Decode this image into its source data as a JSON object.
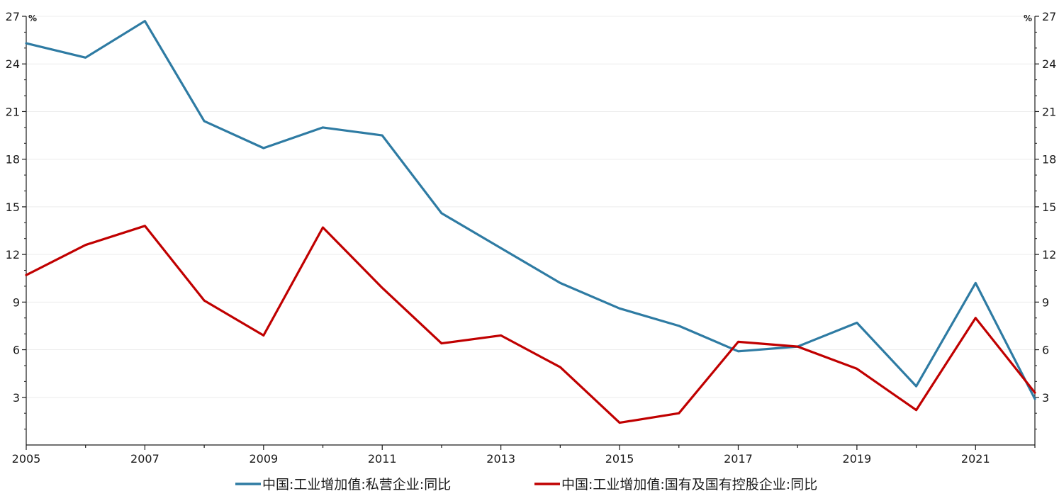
{
  "chart_data": {
    "type": "line",
    "x": [
      2005,
      2006,
      2007,
      2008,
      2009,
      2010,
      2011,
      2012,
      2013,
      2014,
      2015,
      2016,
      2017,
      2018,
      2019,
      2020,
      2021,
      2022
    ],
    "x_tick_labels": [
      "2005",
      "2007",
      "2009",
      "2011",
      "2013",
      "2015",
      "2017",
      "2019",
      "2021"
    ],
    "x_tick_values": [
      2005,
      2007,
      2009,
      2011,
      2013,
      2015,
      2017,
      2019,
      2021
    ],
    "xlim": [
      2005,
      2022
    ],
    "ylim": [
      0,
      27
    ],
    "y_ticks": [
      3,
      6,
      9,
      12,
      15,
      18,
      21,
      24,
      27
    ],
    "y_unit_left": "%",
    "y_unit_right": "%",
    "grid": true,
    "legend_position": "bottom",
    "series": [
      {
        "name": "中国:工业增加值:私营企业:同比",
        "color": "#2e7ba3",
        "values": [
          25.3,
          24.4,
          26.7,
          20.4,
          18.7,
          20.0,
          19.5,
          14.6,
          12.4,
          10.2,
          8.6,
          7.5,
          5.9,
          6.2,
          7.7,
          3.7,
          10.2,
          2.9
        ]
      },
      {
        "name": "中国:工业增加值:国有及国有控股企业:同比",
        "color": "#c00000",
        "values": [
          10.7,
          12.6,
          13.8,
          9.1,
          6.9,
          13.7,
          9.9,
          6.4,
          6.9,
          4.9,
          1.4,
          2.0,
          6.5,
          6.2,
          4.8,
          2.2,
          8.0,
          3.3
        ]
      }
    ]
  }
}
